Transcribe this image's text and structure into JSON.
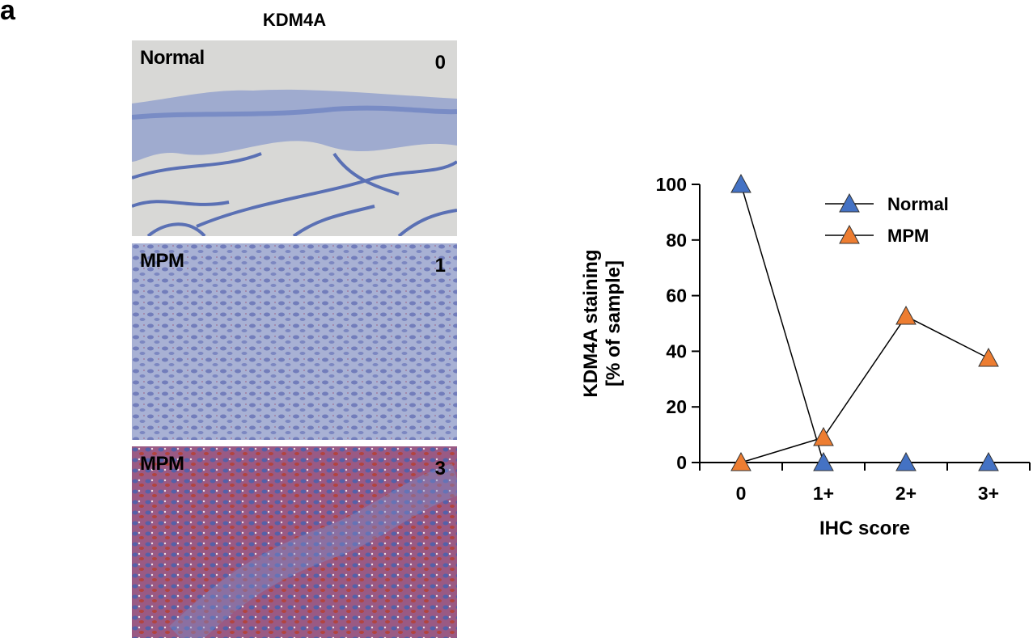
{
  "figure": {
    "panel_letter": "a",
    "gene_title": "KDM4A",
    "micrographs": [
      {
        "label": "Normal",
        "score": "0",
        "stain": "blue hematoxylin, no brown/red staining"
      },
      {
        "label": "MPM",
        "score": "1",
        "stain": "mostly blue with weak red staining"
      },
      {
        "label": "MPM",
        "score": "3",
        "stain": "strong red-brown staining"
      }
    ]
  },
  "chart_data": {
    "type": "line",
    "title": "",
    "xlabel": "IHC score",
    "ylabel": "KDM4A staining\n[% of sample]",
    "ylabel_lines": [
      "KDM4A staining",
      "[% of sample]"
    ],
    "categories": [
      "0",
      "1+",
      "2+",
      "3+"
    ],
    "ylim": [
      0,
      100
    ],
    "yticks": [
      0,
      20,
      40,
      60,
      80,
      100
    ],
    "grid": false,
    "legend_position": "upper right",
    "marker": "triangle",
    "series": [
      {
        "name": "Normal",
        "color": "#4472c4",
        "values": [
          100,
          0,
          0,
          0
        ]
      },
      {
        "name": "MPM",
        "color": "#ed7d31",
        "values": [
          0,
          9,
          52.6,
          37.5
        ]
      }
    ]
  }
}
